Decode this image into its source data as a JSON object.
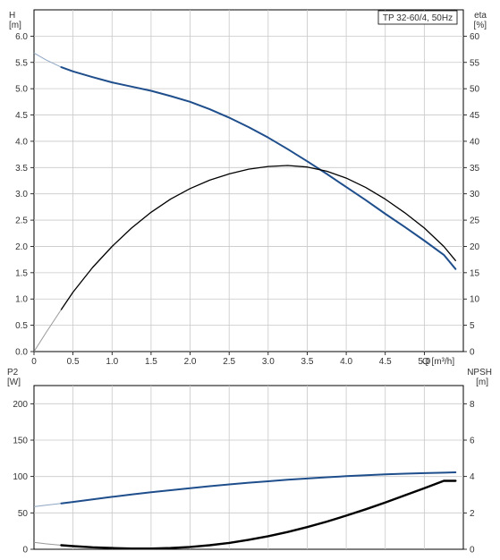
{
  "chart_data": [
    {
      "type": "line",
      "title": "TP 32-60/4, 50Hz",
      "xlabel": "Q [m³/h]",
      "ylabel_left": [
        "H",
        "[m]"
      ],
      "ylabel_right": [
        "eta",
        "[%]"
      ],
      "xlim": [
        0,
        5.5
      ],
      "ylim_left": [
        0,
        6.5
      ],
      "ylim_right": [
        0,
        65
      ],
      "x_ticks": [
        "0",
        "0.5",
        "1.0",
        "1.5",
        "2.0",
        "2.5",
        "3.0",
        "3.5",
        "4.0",
        "4.5",
        "5.0"
      ],
      "y_ticks_left": [
        "0.0",
        "0.5",
        "1.0",
        "1.5",
        "2.0",
        "2.5",
        "3.0",
        "3.5",
        "4.0",
        "4.5",
        "5.0",
        "5.5",
        "6.0"
      ],
      "y_ticks_right": [
        "0",
        "5",
        "10",
        "15",
        "20",
        "25",
        "30",
        "35",
        "40",
        "45",
        "50",
        "55",
        "60"
      ],
      "grid": true,
      "series": [
        {
          "axis": "left",
          "color": "#1f4e8c",
          "extrapolated": {
            "x": [
              0.0,
              0.15,
              0.35
            ],
            "y": [
              5.68,
              5.55,
              5.41
            ]
          },
          "x": [
            0.35,
            0.5,
            0.75,
            1.0,
            1.25,
            1.5,
            1.75,
            2.0,
            2.25,
            2.5,
            2.75,
            3.0,
            3.25,
            3.5,
            3.75,
            4.0,
            4.25,
            4.5,
            4.75,
            5.0,
            5.25,
            5.4
          ],
          "y": [
            5.41,
            5.33,
            5.22,
            5.12,
            5.04,
            4.96,
            4.86,
            4.75,
            4.61,
            4.45,
            4.27,
            4.07,
            3.85,
            3.62,
            3.38,
            3.13,
            2.88,
            2.62,
            2.37,
            2.11,
            1.84,
            1.57
          ]
        },
        {
          "axis": "right",
          "color": "#000000",
          "extrapolated": {
            "x": [
              0.0,
              0.15,
              0.35
            ],
            "y": [
              0.0,
              3.5,
              8.0
            ]
          },
          "x": [
            0.35,
            0.5,
            0.75,
            1.0,
            1.25,
            1.5,
            1.75,
            2.0,
            2.25,
            2.5,
            2.75,
            3.0,
            3.25,
            3.5,
            3.75,
            4.0,
            4.25,
            4.5,
            4.75,
            5.0,
            5.25,
            5.4
          ],
          "y": [
            8.0,
            11.3,
            16.0,
            20.0,
            23.5,
            26.5,
            29.0,
            31.0,
            32.6,
            33.8,
            34.7,
            35.2,
            35.4,
            35.1,
            34.3,
            33.0,
            31.2,
            29.0,
            26.4,
            23.5,
            20.0,
            17.3
          ]
        }
      ]
    },
    {
      "type": "line",
      "xlabel": "",
      "ylabel_left": [
        "P2",
        "[W]"
      ],
      "ylabel_right": [
        "NPSH",
        "[m]"
      ],
      "xlim": [
        0,
        5.5
      ],
      "ylim_left": [
        0,
        225
      ],
      "ylim_right": [
        0,
        9
      ],
      "y_ticks_left": [
        "0",
        "50",
        "100",
        "150",
        "200"
      ],
      "y_ticks_right": [
        "0",
        "2",
        "4",
        "6",
        "8"
      ],
      "grid": true,
      "series": [
        {
          "axis": "left",
          "color": "#1f4e8c",
          "extrapolated": {
            "x": [
              0.0,
              0.15,
              0.35
            ],
            "y": [
              58.5,
              60.5,
              63.0
            ]
          },
          "x": [
            0.35,
            0.5,
            0.75,
            1.0,
            1.25,
            1.5,
            1.75,
            2.0,
            2.25,
            2.5,
            2.75,
            3.0,
            3.25,
            3.5,
            3.75,
            4.0,
            4.25,
            4.5,
            4.75,
            5.0,
            5.25,
            5.4
          ],
          "y": [
            63.0,
            65.0,
            68.5,
            72.0,
            75.3,
            78.3,
            81.2,
            84.0,
            86.7,
            89.2,
            91.5,
            93.5,
            95.5,
            97.3,
            99.0,
            100.5,
            101.8,
            102.9,
            103.9,
            104.6,
            105.3,
            105.7
          ]
        },
        {
          "axis": "right",
          "color": "#000000",
          "extrapolated": {
            "x": [
              0.0,
              0.15,
              0.35
            ],
            "y": [
              0.38,
              0.3,
              0.22
            ]
          },
          "x": [
            0.35,
            0.5,
            0.75,
            1.0,
            1.25,
            1.5,
            1.75,
            2.0,
            2.25,
            2.5,
            2.75,
            3.0,
            3.25,
            3.5,
            3.75,
            4.0,
            4.25,
            4.5,
            4.75,
            5.0,
            5.25,
            5.4
          ],
          "y": [
            0.22,
            0.17,
            0.11,
            0.07,
            0.04,
            0.04,
            0.07,
            0.13,
            0.22,
            0.35,
            0.52,
            0.72,
            0.95,
            1.22,
            1.52,
            1.85,
            2.2,
            2.57,
            2.96,
            3.36,
            3.76,
            3.76
          ]
        }
      ]
    }
  ]
}
